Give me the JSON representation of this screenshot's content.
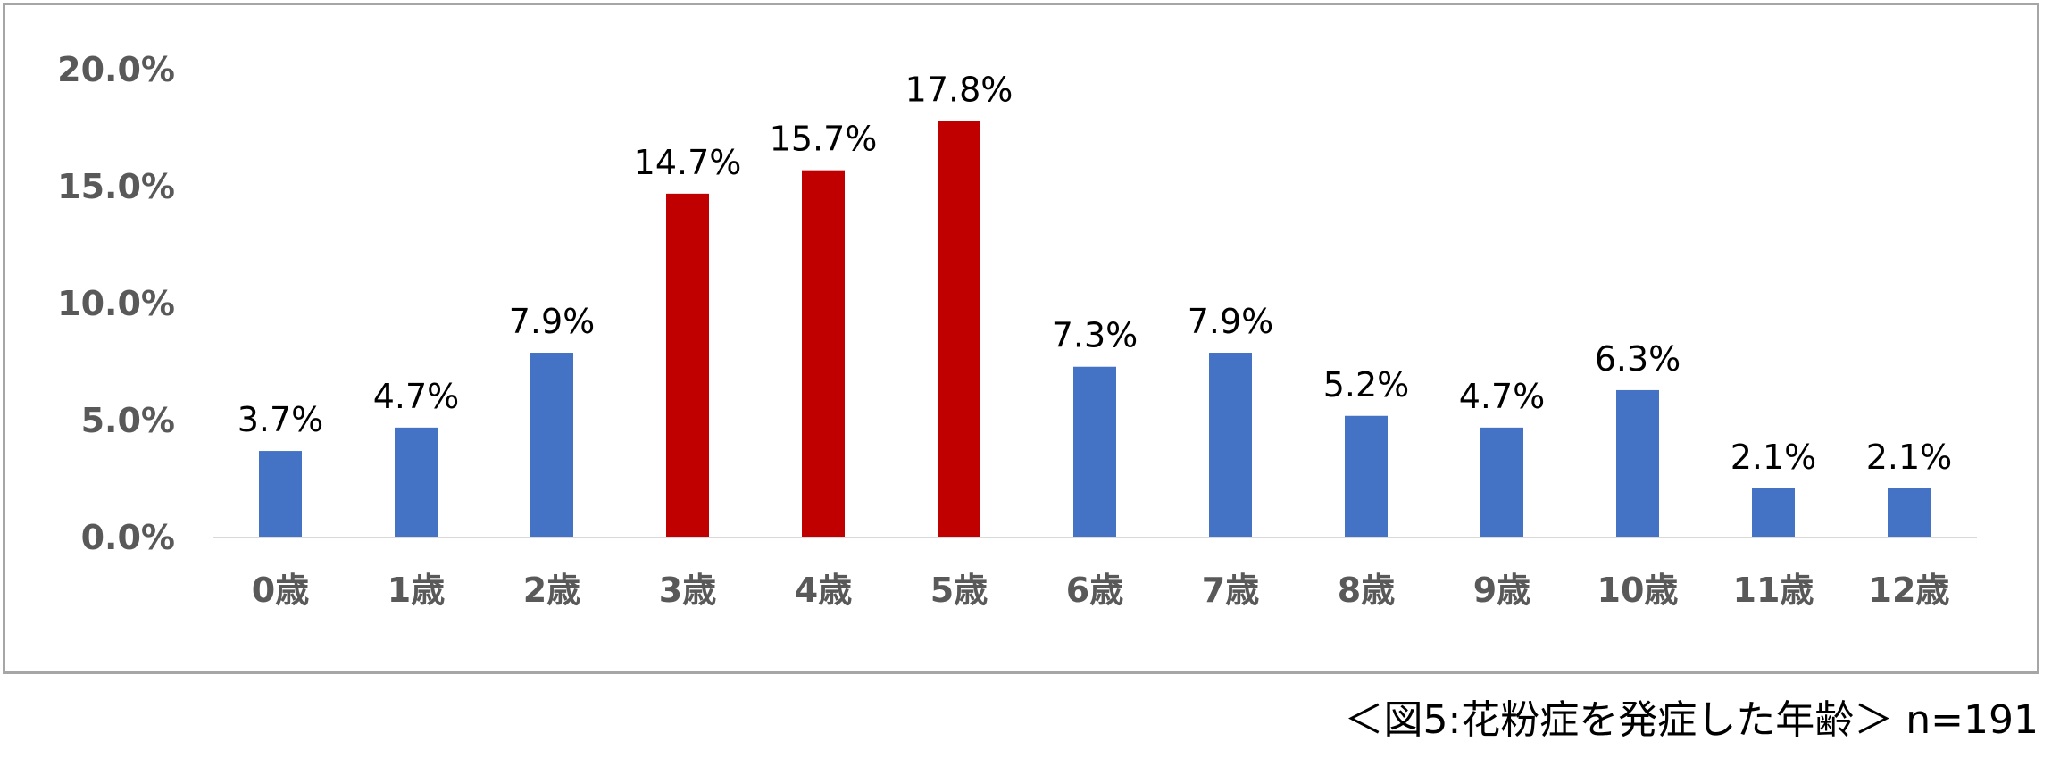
{
  "chart_data": {
    "type": "bar",
    "categories": [
      "0歳",
      "1歳",
      "2歳",
      "3歳",
      "4歳",
      "5歳",
      "6歳",
      "7歳",
      "8歳",
      "9歳",
      "10歳",
      "11歳",
      "12歳"
    ],
    "values": [
      3.7,
      4.7,
      7.9,
      14.7,
      15.7,
      17.8,
      7.3,
      7.9,
      5.2,
      4.7,
      6.3,
      2.1,
      2.1
    ],
    "data_labels": [
      "3.7%",
      "4.7%",
      "7.9%",
      "14.7%",
      "15.7%",
      "17.8%",
      "7.3%",
      "7.9%",
      "5.2%",
      "4.7%",
      "6.3%",
      "2.1%",
      "2.1%"
    ],
    "highlighted": [
      3,
      4,
      5
    ],
    "colors": {
      "default": "#4472c4",
      "highlight": "#c00000",
      "axis": "#d9d9d9",
      "frame": "#a6a6a6"
    },
    "y_ticks": [
      "0.0%",
      "5.0%",
      "10.0%",
      "15.0%",
      "20.0%"
    ],
    "y_tick_values": [
      0,
      5,
      10,
      15,
      20
    ],
    "ylim": [
      0,
      20
    ],
    "grid": false,
    "legend": "none"
  },
  "caption": "＜図5:花粉症を発症した年齢＞ n=191"
}
